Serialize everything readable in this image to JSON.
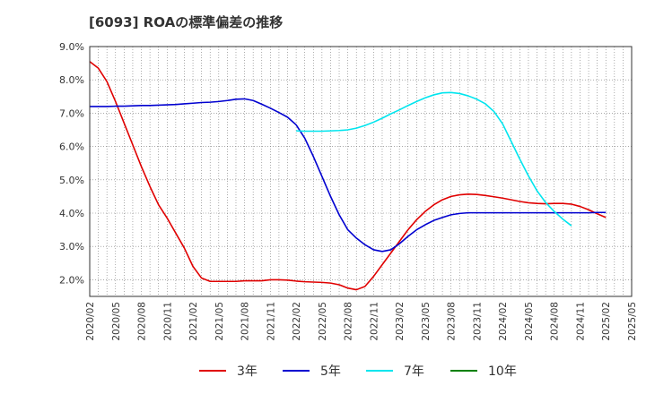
{
  "chart_data": {
    "type": "line",
    "title": "[6093]  ROAの標準偏差の推移",
    "xlabel": "",
    "ylabel": "",
    "ylim": [
      1.5,
      9.0
    ],
    "y_ticks": [
      2.0,
      3.0,
      4.0,
      5.0,
      6.0,
      7.0,
      8.0,
      9.0
    ],
    "y_tick_labels": [
      "2.0%",
      "3.0%",
      "4.0%",
      "5.0%",
      "6.0%",
      "7.0%",
      "8.0%",
      "9.0%"
    ],
    "x_tick_labels": [
      "2020/02",
      "2020/05",
      "2020/08",
      "2020/11",
      "2021/02",
      "2021/05",
      "2021/08",
      "2021/11",
      "2022/02",
      "2022/05",
      "2022/08",
      "2022/11",
      "2023/02",
      "2023/05",
      "2023/08",
      "2023/11",
      "2024/02",
      "2024/05",
      "2024/08",
      "2024/11",
      "2025/02",
      "2025/05"
    ],
    "grid": true,
    "legend_position": "bottom",
    "series": [
      {
        "name": "3年",
        "color": "#e00000",
        "start_month_index": 0,
        "values": [
          8.55,
          8.35,
          7.95,
          7.35,
          6.7,
          6.05,
          5.4,
          4.8,
          4.25,
          3.85,
          3.4,
          2.95,
          2.4,
          2.05,
          1.95,
          1.95,
          1.95,
          1.95,
          1.97,
          1.97,
          1.97,
          2.0,
          2.0,
          1.99,
          1.96,
          1.94,
          1.93,
          1.92,
          1.9,
          1.85,
          1.75,
          1.7,
          1.8,
          2.1,
          2.45,
          2.8,
          3.15,
          3.5,
          3.8,
          4.05,
          4.25,
          4.4,
          4.5,
          4.55,
          4.57,
          4.56,
          4.53,
          4.49,
          4.45,
          4.4,
          4.35,
          4.31,
          4.29,
          4.28,
          4.29,
          4.29,
          4.27,
          4.2,
          4.1,
          3.98,
          3.87
        ]
      },
      {
        "name": "5年",
        "color": "#0000d0",
        "start_month_index": 0,
        "values": [
          7.2,
          7.2,
          7.2,
          7.21,
          7.21,
          7.22,
          7.23,
          7.23,
          7.24,
          7.25,
          7.26,
          7.28,
          7.3,
          7.32,
          7.33,
          7.35,
          7.38,
          7.42,
          7.43,
          7.38,
          7.27,
          7.15,
          7.02,
          6.88,
          6.65,
          6.25,
          5.7,
          5.1,
          4.5,
          3.95,
          3.5,
          3.25,
          3.05,
          2.9,
          2.85,
          2.9,
          3.08,
          3.3,
          3.5,
          3.65,
          3.78,
          3.87,
          3.95,
          3.99,
          4.01,
          4.01,
          4.01,
          4.01,
          4.01,
          4.01,
          4.01,
          4.01,
          4.01,
          4.01,
          4.01,
          4.01,
          4.01,
          4.01,
          4.01,
          4.02,
          4.02
        ]
      },
      {
        "name": "7年",
        "color": "#00e5ee",
        "start_month_index": 24,
        "values": [
          6.47,
          6.46,
          6.46,
          6.46,
          6.47,
          6.48,
          6.5,
          6.55,
          6.63,
          6.73,
          6.85,
          6.98,
          7.1,
          7.23,
          7.35,
          7.46,
          7.55,
          7.61,
          7.62,
          7.59,
          7.52,
          7.42,
          7.28,
          7.05,
          6.68,
          6.15,
          5.62,
          5.12,
          4.67,
          4.32,
          4.05,
          3.82,
          3.62
        ]
      },
      {
        "name": "10年",
        "color": "#008000",
        "start_month_index": 0,
        "values": []
      }
    ]
  }
}
